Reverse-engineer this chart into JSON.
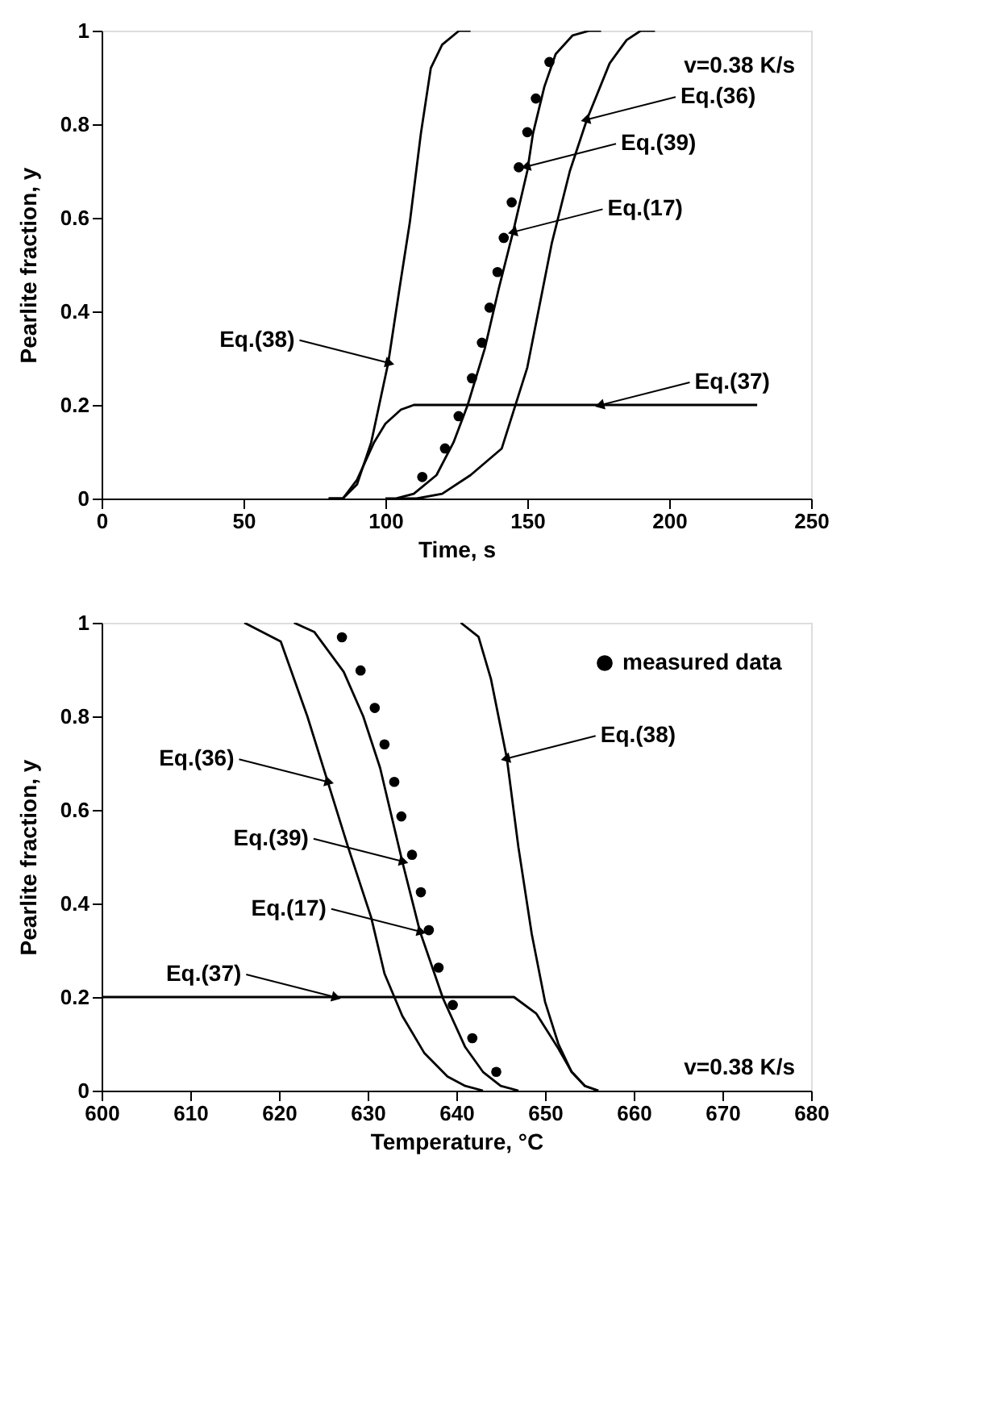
{
  "chart_data": [
    {
      "type": "line",
      "xlabel": "Time,   s",
      "ylabel": "Pearlite fraction,  y",
      "xlim": [
        0,
        250
      ],
      "xticks": [
        0,
        50,
        100,
        150,
        200,
        250
      ],
      "ylim": [
        0,
        1
      ],
      "yticks": [
        0,
        0.2,
        0.4,
        0.6,
        0.8,
        1
      ],
      "series": [
        {
          "color": "#000000",
          "x": [
            80,
            85,
            90,
            95,
            101,
            105,
            108.6,
            112.5,
            116,
            120,
            126,
            130
          ],
          "values": [
            0,
            0,
            0.03,
            0.12,
            0.29,
            0.45,
            0.59,
            0.78,
            0.92,
            0.97,
            1,
            1
          ]
        },
        {
          "color": "#000000",
          "x": [
            80,
            85,
            90,
            96,
            100,
            105.5,
            110,
            150,
            231
          ],
          "values": [
            0,
            0,
            0.04,
            0.12,
            0.16,
            0.19,
            0.2,
            0.2,
            0.2
          ]
        },
        {
          "color": "#000000",
          "x": [
            100,
            103.5,
            110,
            118,
            124,
            129,
            135,
            140,
            145,
            150,
            152,
            156,
            160,
            166,
            172,
            176
          ],
          "values": [
            0,
            0,
            0.01,
            0.05,
            0.12,
            0.2,
            0.32,
            0.45,
            0.57,
            0.7,
            0.78,
            0.88,
            0.95,
            0.99,
            1,
            1
          ]
        },
        {
          "color": "#000000",
          "x": [
            105,
            111,
            120,
            130,
            141,
            150,
            158.6,
            165,
            171,
            179,
            185,
            190,
            195
          ],
          "values": [
            0,
            0,
            0.01,
            0.05,
            0.107,
            0.28,
            0.545,
            0.7,
            0.81,
            0.93,
            0.98,
            1,
            1
          ]
        },
        {
          "type": "scatter",
          "color": "#000000",
          "marker": "circle",
          "x": [
            113,
            121,
            125.8,
            130.5,
            134,
            136.7,
            139.5,
            141.7,
            144.5,
            147,
            150,
            153,
            157.8
          ],
          "values": [
            0.046,
            0.107,
            0.176,
            0.257,
            0.333,
            0.408,
            0.484,
            0.557,
            0.633,
            0.708,
            0.783,
            0.855,
            0.933
          ]
        }
      ],
      "annotations": [
        {
          "text": "Eq.(38)",
          "x": 101,
          "y": 0.29
        },
        {
          "text": "Eq.(36)",
          "x": 171,
          "y": 0.81
        },
        {
          "text": "Eq.(39)",
          "x": 150,
          "y": 0.71
        },
        {
          "text": "Eq.(17)",
          "x": 145.3,
          "y": 0.57
        },
        {
          "text": "Eq.(37)",
          "x": 176,
          "y": 0.2
        },
        "v=0.38  K/s"
      ]
    },
    {
      "type": "line",
      "xlabel": "Temperature,   °C",
      "ylabel": "Pearlite fraction,  y",
      "xlim": [
        600,
        680
      ],
      "xticks": [
        600,
        610,
        620,
        630,
        640,
        650,
        660,
        670,
        680
      ],
      "ylim": [
        0,
        1
      ],
      "yticks": [
        0,
        0.2,
        0.4,
        0.6,
        0.8,
        1
      ],
      "legend": "top right",
      "series": [
        {
          "color": "#000000",
          "x": [
            616.1,
            620.2,
            623.2,
            625.5,
            627.8,
            630.4,
            631.9,
            633.9,
            636.4,
            639,
            641,
            643
          ],
          "values": [
            1,
            0.96,
            0.8,
            0.66,
            0.52,
            0.37,
            0.25,
            0.16,
            0.08,
            0.03,
            0.01,
            0
          ]
        },
        {
          "color": "#000000",
          "x": [
            621.7,
            624,
            627.3,
            629.5,
            631.4,
            633.9,
            635.9,
            638.5,
            641,
            643,
            645,
            647
          ],
          "values": [
            1,
            0.98,
            0.895,
            0.8,
            0.69,
            0.49,
            0.34,
            0.197,
            0.093,
            0.04,
            0.01,
            0
          ]
        },
        {
          "color": "#000000",
          "x": [
            640.5,
            642.5,
            643.9,
            645.7,
            647,
            648.5,
            650,
            651.5,
            653,
            654.5,
            656
          ],
          "values": [
            1,
            0.97,
            0.88,
            0.71,
            0.52,
            0.335,
            0.19,
            0.1,
            0.04,
            0.01,
            0
          ]
        },
        {
          "color": "#000000",
          "x": [
            600,
            644,
            646.5,
            649,
            651.5,
            653,
            654.5,
            656
          ],
          "values": [
            0.2,
            0.2,
            0.2,
            0.165,
            0.09,
            0.04,
            0.01,
            0
          ]
        },
        {
          "type": "scatter",
          "name": "measured data",
          "color": "#000000",
          "marker": "circle",
          "x": [
            627.1,
            629.2,
            630.8,
            631.9,
            633,
            633.8,
            635,
            636,
            636.9,
            638,
            639.6,
            641.8,
            644.5
          ],
          "values": [
            0.969,
            0.898,
            0.818,
            0.74,
            0.66,
            0.586,
            0.504,
            0.424,
            0.343,
            0.263,
            0.183,
            0.112,
            0.04
          ]
        }
      ],
      "annotations": [
        {
          "text": "Eq.(36)",
          "x": 625.5,
          "y": 0.66
        },
        {
          "text": "Eq.(39)",
          "x": 633.9,
          "y": 0.49
        },
        {
          "text": "Eq.(17)",
          "x": 635.9,
          "y": 0.34
        },
        {
          "text": "Eq.(37)",
          "x": 626.3,
          "y": 0.2
        },
        {
          "text": "Eq.(38)",
          "x": 645.7,
          "y": 0.71
        },
        "v=0.38  K/s"
      ]
    }
  ]
}
